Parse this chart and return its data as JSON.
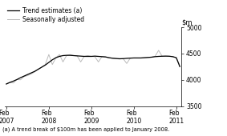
{
  "ylim": [
    3500,
    5000
  ],
  "yticks": [
    3500,
    4000,
    4500,
    5000
  ],
  "xtick_positions": [
    0,
    12,
    24,
    36,
    48
  ],
  "xtick_labels": [
    "Feb\n2007",
    "Feb\n2008",
    "Feb\n2009",
    "Feb\n2010",
    "Feb\n2011"
  ],
  "footnote": "(a) A trend break of $100m has been applied to January 2008.",
  "legend_entries": [
    "Trend estimates (a)",
    "Seasonally adjusted"
  ],
  "trend_color": "#000000",
  "seasonal_color": "#bbbbbb",
  "trend_linewidth": 0.9,
  "seasonal_linewidth": 0.7,
  "trend_values": [
    3920,
    3950,
    3975,
    4005,
    4040,
    4070,
    4100,
    4130,
    4160,
    4200,
    4240,
    4280,
    4330,
    4380,
    4420,
    4445,
    4460,
    4465,
    4465,
    4460,
    4455,
    4450,
    4445,
    4445,
    4445,
    4450,
    4445,
    4440,
    4435,
    4420,
    4410,
    4405,
    4400,
    4402,
    4408,
    4412,
    4415,
    4415,
    4415,
    4420,
    4425,
    4430,
    4440,
    4445,
    4448,
    4450,
    4448,
    4440,
    4420,
    4250
  ],
  "seasonal_values": [
    3920,
    3950,
    3940,
    4005,
    4000,
    4060,
    4080,
    4110,
    4150,
    4200,
    4240,
    4290,
    4480,
    4290,
    4420,
    4480,
    4340,
    4460,
    4480,
    4460,
    4455,
    4340,
    4445,
    4460,
    4445,
    4440,
    4340,
    4440,
    4435,
    4420,
    4410,
    4400,
    4395,
    4402,
    4310,
    4412,
    4415,
    4415,
    4415,
    4420,
    4425,
    4430,
    4445,
    4560,
    4448,
    4450,
    4448,
    4440,
    4420,
    4270
  ],
  "background_color": "#ffffff"
}
